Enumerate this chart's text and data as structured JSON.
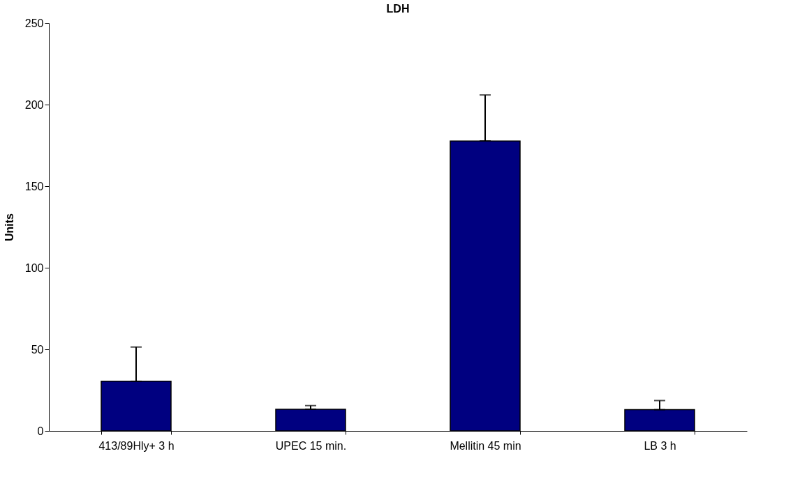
{
  "chart_data": {
    "type": "bar",
    "title": "LDH",
    "ylabel": "Units",
    "categories": [
      "413/89Hly+ 3 h",
      "UPEC 15 min.",
      "Mellitin 45 min",
      "LB 3 h"
    ],
    "values": [
      30.4,
      13.3,
      177.7,
      13
    ],
    "errors": [
      [
        30.4,
        51.4
      ],
      [
        13.3,
        15.5
      ],
      [
        177.7,
        205.9
      ],
      [
        13,
        18.6
      ]
    ],
    "color": "#000080",
    "ylim": [
      0,
      250
    ],
    "yticks": [
      0,
      50,
      100,
      150,
      200,
      250
    ],
    "grid": false
  }
}
